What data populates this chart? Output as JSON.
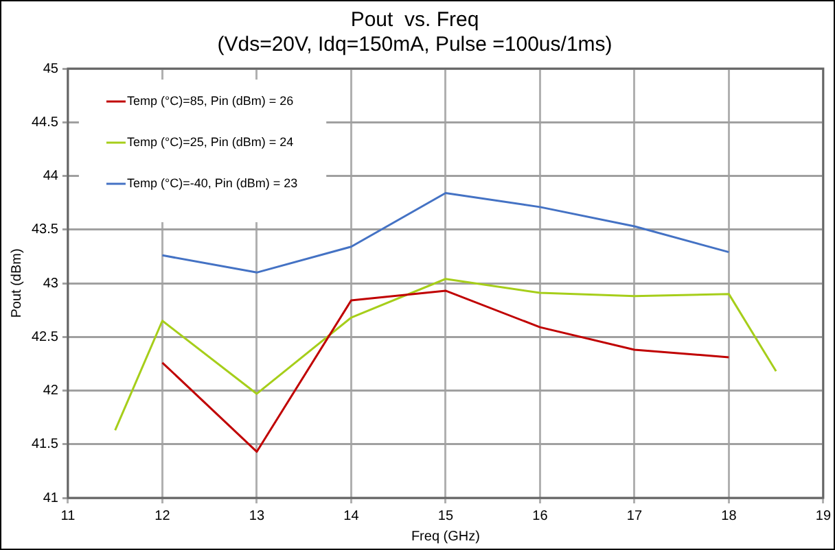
{
  "chart_data": {
    "type": "line",
    "title": "Pout  vs. Freq",
    "subtitle": "(Vds=20V, Idq=150mA, Pulse =100us/1ms)",
    "xlabel": "Freq (GHz)",
    "ylabel": "Pout (dBm)",
    "xlim": [
      11,
      19
    ],
    "xticks": [
      11,
      12,
      13,
      14,
      15,
      16,
      17,
      18,
      19
    ],
    "ylim": [
      41,
      45
    ],
    "yticks": [
      41,
      41.5,
      42,
      42.5,
      43,
      43.5,
      44,
      44.5,
      45
    ],
    "grid": true,
    "legend": "top left",
    "marker": "none",
    "line_style": "solid",
    "series": [
      {
        "name": "Temp (°C)=85, Pin (dBm) = 26",
        "color": "#c00000",
        "x": [
          12,
          13,
          14,
          15,
          16,
          17,
          18
        ],
        "values": [
          42.26,
          41.43,
          42.84,
          42.93,
          42.59,
          42.38,
          42.31
        ]
      },
      {
        "name": "Temp (°C)=25, Pin (dBm) = 24",
        "color": "#a6ce1a",
        "x": [
          11.5,
          12,
          13,
          14,
          15,
          16,
          17,
          18,
          18.5
        ],
        "values": [
          41.63,
          42.65,
          41.97,
          42.68,
          43.04,
          42.91,
          42.88,
          42.9,
          42.18
        ]
      },
      {
        "name": "Temp (°C)=-40, Pin (dBm) = 23",
        "color": "#4472c4",
        "x": [
          12,
          13,
          14,
          15,
          16,
          17,
          18
        ],
        "values": [
          43.26,
          43.1,
          43.34,
          43.84,
          43.71,
          43.53,
          43.29
        ]
      }
    ]
  }
}
